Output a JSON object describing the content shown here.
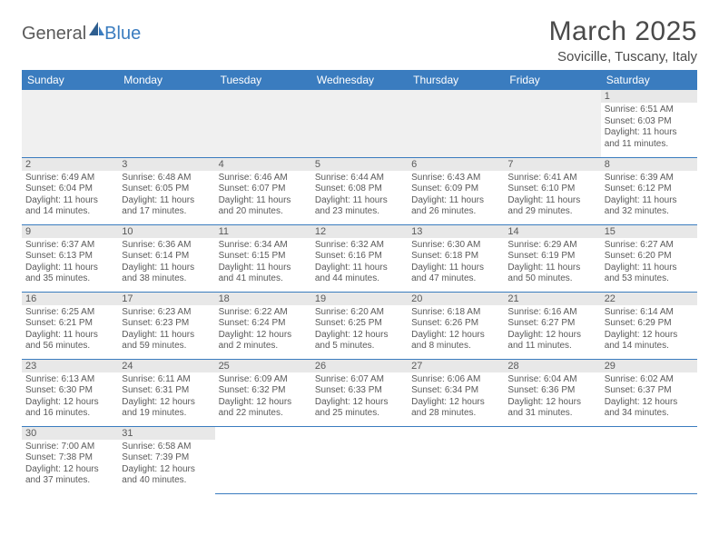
{
  "logo": {
    "general": "General",
    "blue": "Blue"
  },
  "header": {
    "title": "March 2025",
    "location": "Sovicille, Tuscany, Italy"
  },
  "colors": {
    "accent": "#3a7cbf",
    "text": "#4a4a4a",
    "shade": "#e8e8e8",
    "blank": "#f0f0f0"
  },
  "weekdays": [
    "Sunday",
    "Monday",
    "Tuesday",
    "Wednesday",
    "Thursday",
    "Friday",
    "Saturday"
  ],
  "weeks": [
    [
      null,
      null,
      null,
      null,
      null,
      null,
      {
        "n": "1",
        "sr": "Sunrise: 6:51 AM",
        "ss": "Sunset: 6:03 PM",
        "dl": "Daylight: 11 hours and 11 minutes."
      }
    ],
    [
      {
        "n": "2",
        "sr": "Sunrise: 6:49 AM",
        "ss": "Sunset: 6:04 PM",
        "dl": "Daylight: 11 hours and 14 minutes."
      },
      {
        "n": "3",
        "sr": "Sunrise: 6:48 AM",
        "ss": "Sunset: 6:05 PM",
        "dl": "Daylight: 11 hours and 17 minutes."
      },
      {
        "n": "4",
        "sr": "Sunrise: 6:46 AM",
        "ss": "Sunset: 6:07 PM",
        "dl": "Daylight: 11 hours and 20 minutes."
      },
      {
        "n": "5",
        "sr": "Sunrise: 6:44 AM",
        "ss": "Sunset: 6:08 PM",
        "dl": "Daylight: 11 hours and 23 minutes."
      },
      {
        "n": "6",
        "sr": "Sunrise: 6:43 AM",
        "ss": "Sunset: 6:09 PM",
        "dl": "Daylight: 11 hours and 26 minutes."
      },
      {
        "n": "7",
        "sr": "Sunrise: 6:41 AM",
        "ss": "Sunset: 6:10 PM",
        "dl": "Daylight: 11 hours and 29 minutes."
      },
      {
        "n": "8",
        "sr": "Sunrise: 6:39 AM",
        "ss": "Sunset: 6:12 PM",
        "dl": "Daylight: 11 hours and 32 minutes."
      }
    ],
    [
      {
        "n": "9",
        "sr": "Sunrise: 6:37 AM",
        "ss": "Sunset: 6:13 PM",
        "dl": "Daylight: 11 hours and 35 minutes."
      },
      {
        "n": "10",
        "sr": "Sunrise: 6:36 AM",
        "ss": "Sunset: 6:14 PM",
        "dl": "Daylight: 11 hours and 38 minutes."
      },
      {
        "n": "11",
        "sr": "Sunrise: 6:34 AM",
        "ss": "Sunset: 6:15 PM",
        "dl": "Daylight: 11 hours and 41 minutes."
      },
      {
        "n": "12",
        "sr": "Sunrise: 6:32 AM",
        "ss": "Sunset: 6:16 PM",
        "dl": "Daylight: 11 hours and 44 minutes."
      },
      {
        "n": "13",
        "sr": "Sunrise: 6:30 AM",
        "ss": "Sunset: 6:18 PM",
        "dl": "Daylight: 11 hours and 47 minutes."
      },
      {
        "n": "14",
        "sr": "Sunrise: 6:29 AM",
        "ss": "Sunset: 6:19 PM",
        "dl": "Daylight: 11 hours and 50 minutes."
      },
      {
        "n": "15",
        "sr": "Sunrise: 6:27 AM",
        "ss": "Sunset: 6:20 PM",
        "dl": "Daylight: 11 hours and 53 minutes."
      }
    ],
    [
      {
        "n": "16",
        "sr": "Sunrise: 6:25 AM",
        "ss": "Sunset: 6:21 PM",
        "dl": "Daylight: 11 hours and 56 minutes."
      },
      {
        "n": "17",
        "sr": "Sunrise: 6:23 AM",
        "ss": "Sunset: 6:23 PM",
        "dl": "Daylight: 11 hours and 59 minutes."
      },
      {
        "n": "18",
        "sr": "Sunrise: 6:22 AM",
        "ss": "Sunset: 6:24 PM",
        "dl": "Daylight: 12 hours and 2 minutes."
      },
      {
        "n": "19",
        "sr": "Sunrise: 6:20 AM",
        "ss": "Sunset: 6:25 PM",
        "dl": "Daylight: 12 hours and 5 minutes."
      },
      {
        "n": "20",
        "sr": "Sunrise: 6:18 AM",
        "ss": "Sunset: 6:26 PM",
        "dl": "Daylight: 12 hours and 8 minutes."
      },
      {
        "n": "21",
        "sr": "Sunrise: 6:16 AM",
        "ss": "Sunset: 6:27 PM",
        "dl": "Daylight: 12 hours and 11 minutes."
      },
      {
        "n": "22",
        "sr": "Sunrise: 6:14 AM",
        "ss": "Sunset: 6:29 PM",
        "dl": "Daylight: 12 hours and 14 minutes."
      }
    ],
    [
      {
        "n": "23",
        "sr": "Sunrise: 6:13 AM",
        "ss": "Sunset: 6:30 PM",
        "dl": "Daylight: 12 hours and 16 minutes."
      },
      {
        "n": "24",
        "sr": "Sunrise: 6:11 AM",
        "ss": "Sunset: 6:31 PM",
        "dl": "Daylight: 12 hours and 19 minutes."
      },
      {
        "n": "25",
        "sr": "Sunrise: 6:09 AM",
        "ss": "Sunset: 6:32 PM",
        "dl": "Daylight: 12 hours and 22 minutes."
      },
      {
        "n": "26",
        "sr": "Sunrise: 6:07 AM",
        "ss": "Sunset: 6:33 PM",
        "dl": "Daylight: 12 hours and 25 minutes."
      },
      {
        "n": "27",
        "sr": "Sunrise: 6:06 AM",
        "ss": "Sunset: 6:34 PM",
        "dl": "Daylight: 12 hours and 28 minutes."
      },
      {
        "n": "28",
        "sr": "Sunrise: 6:04 AM",
        "ss": "Sunset: 6:36 PM",
        "dl": "Daylight: 12 hours and 31 minutes."
      },
      {
        "n": "29",
        "sr": "Sunrise: 6:02 AM",
        "ss": "Sunset: 6:37 PM",
        "dl": "Daylight: 12 hours and 34 minutes."
      }
    ],
    [
      {
        "n": "30",
        "sr": "Sunrise: 7:00 AM",
        "ss": "Sunset: 7:38 PM",
        "dl": "Daylight: 12 hours and 37 minutes."
      },
      {
        "n": "31",
        "sr": "Sunrise: 6:58 AM",
        "ss": "Sunset: 7:39 PM",
        "dl": "Daylight: 12 hours and 40 minutes."
      },
      null,
      null,
      null,
      null,
      null
    ]
  ]
}
